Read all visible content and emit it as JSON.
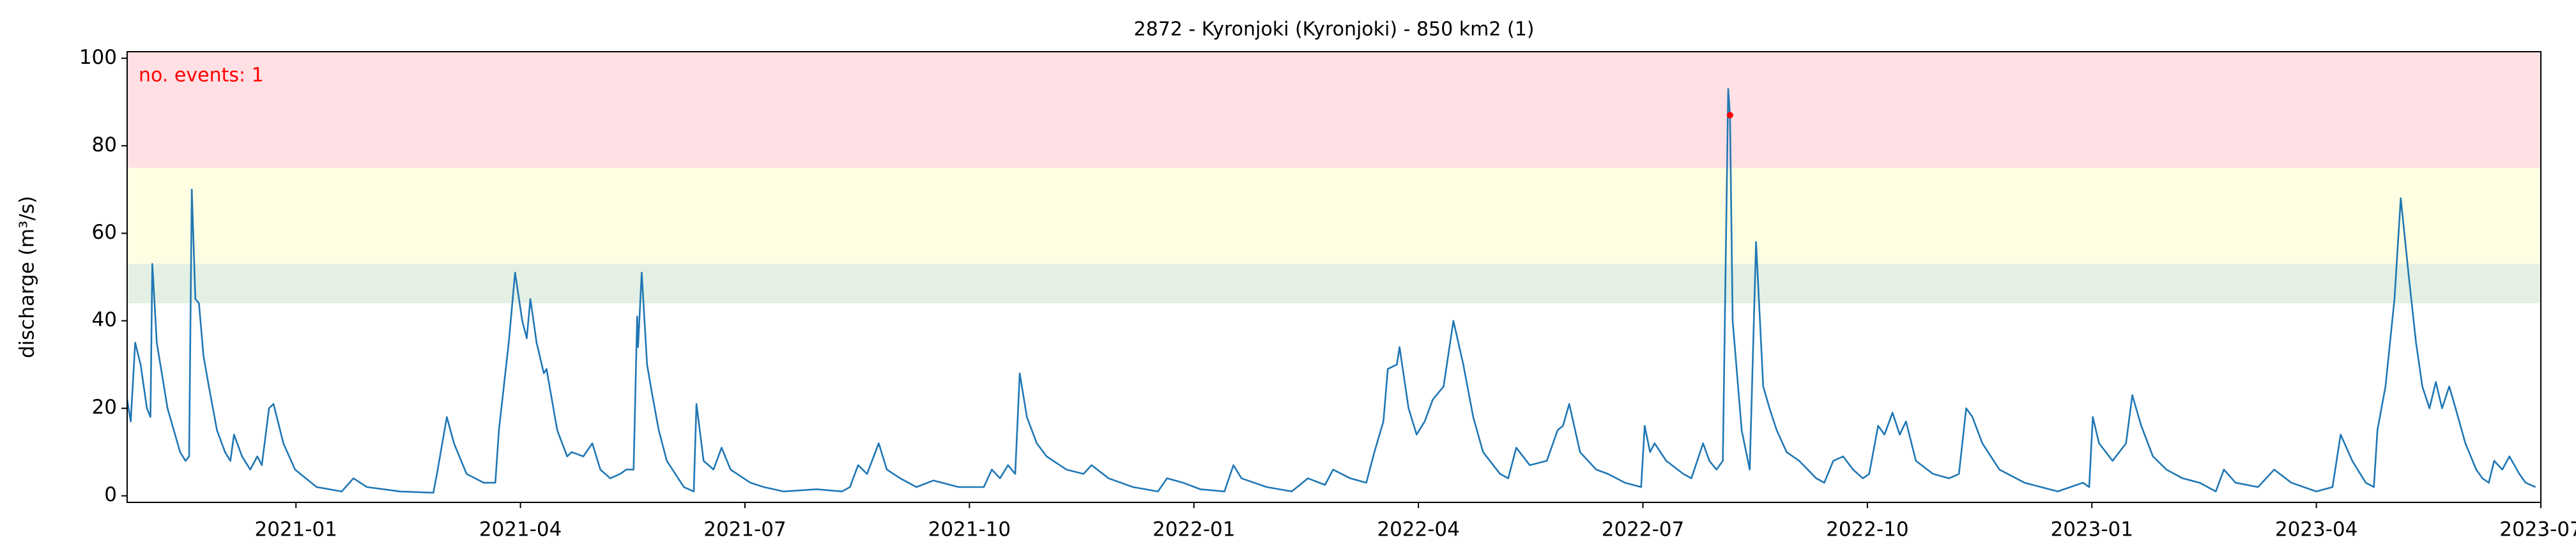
{
  "chart_data": {
    "type": "line",
    "title": "2872 - Kyronjoki (Kyronjoki) - 850 km2 (1)",
    "ylabel": "discharge (m³/s)",
    "annotation": "no. events: 1",
    "color": "#1f77b4",
    "xlim": [
      2020.812,
      2023.5
    ],
    "ylim": [
      -1.5,
      101.5
    ],
    "yticks": [
      0,
      20,
      40,
      60,
      80,
      100
    ],
    "xticks": [
      {
        "value": 2021.0,
        "label": "2021-01"
      },
      {
        "value": 2021.25,
        "label": "2021-04"
      },
      {
        "value": 2021.5,
        "label": "2021-07"
      },
      {
        "value": 2021.75,
        "label": "2021-10"
      },
      {
        "value": 2022.0,
        "label": "2022-01"
      },
      {
        "value": 2022.25,
        "label": "2022-04"
      },
      {
        "value": 2022.5,
        "label": "2022-07"
      },
      {
        "value": 2022.75,
        "label": "2022-10"
      },
      {
        "value": 2023.0,
        "label": "2023-01"
      },
      {
        "value": 2023.25,
        "label": "2023-04"
      },
      {
        "value": 2023.5,
        "label": "2023-07"
      }
    ],
    "thresholds": [
      44,
      53,
      75
    ],
    "threshold_colors": [
      "#e3f0e3",
      "#fefee3",
      "#ffe0e4"
    ],
    "x": [
      2020.812,
      2020.816,
      2020.821,
      2020.827,
      2020.834,
      2020.838,
      2020.84,
      2020.845,
      2020.857,
      2020.871,
      2020.877,
      2020.881,
      2020.884,
      2020.888,
      2020.892,
      2020.897,
      2020.903,
      2020.912,
      2020.921,
      2020.927,
      2020.931,
      2020.94,
      2020.949,
      2020.957,
      2020.962,
      2020.97,
      2020.975,
      2020.986,
      2020.999,
      2021.023,
      2021.051,
      2021.064,
      2021.079,
      2021.116,
      2021.153,
      2021.157,
      2021.168,
      2021.176,
      2021.19,
      2021.209,
      2021.222,
      2021.226,
      2021.237,
      2021.244,
      2021.252,
      2021.257,
      2021.261,
      2021.268,
      2021.276,
      2021.279,
      2021.291,
      2021.302,
      2021.307,
      2021.32,
      2021.33,
      2021.339,
      2021.35,
      2021.361,
      2021.368,
      2021.376,
      2021.38,
      2021.381,
      2021.385,
      2021.391,
      2021.396,
      2021.404,
      2021.413,
      2021.432,
      2021.443,
      2021.446,
      2021.454,
      2021.465,
      2021.474,
      2021.484,
      2021.506,
      2021.521,
      2021.543,
      2021.58,
      2021.608,
      2021.617,
      2021.626,
      2021.636,
      2021.649,
      2021.658,
      2021.673,
      2021.691,
      2021.71,
      2021.738,
      2021.766,
      2021.775,
      2021.784,
      2021.793,
      2021.801,
      2021.806,
      2021.814,
      2021.825,
      2021.836,
      2021.858,
      2021.877,
      2021.886,
      2021.905,
      2021.932,
      2021.96,
      2021.97,
      2021.988,
      2022.007,
      2022.034,
      2022.044,
      2022.053,
      2022.081,
      2022.109,
      2022.127,
      2022.146,
      2022.155,
      2022.174,
      2022.192,
      2022.201,
      2022.211,
      2022.216,
      2022.226,
      2022.229,
      2022.239,
      2022.248,
      2022.257,
      2022.266,
      2022.278,
      2022.289,
      2022.3,
      2022.311,
      2022.322,
      2022.341,
      2022.35,
      2022.359,
      2022.374,
      2022.393,
      2022.405,
      2022.411,
      2022.418,
      2022.43,
      2022.448,
      2022.461,
      2022.48,
      2022.498,
      2022.502,
      2022.508,
      2022.513,
      2022.526,
      2022.545,
      2022.554,
      2022.567,
      2022.574,
      2022.582,
      2022.589,
      2022.595,
      2022.597,
      2022.6,
      2022.61,
      2022.619,
      2022.626,
      2022.634,
      2022.641,
      2022.649,
      2022.66,
      2022.674,
      2022.693,
      2022.702,
      2022.712,
      2022.723,
      2022.734,
      2022.745,
      2022.752,
      2022.762,
      2022.769,
      2022.778,
      2022.786,
      2022.793,
      2022.804,
      2022.823,
      2022.841,
      2022.852,
      2022.86,
      2022.867,
      2022.878,
      2022.897,
      2022.925,
      2022.962,
      2022.99,
      2022.997,
      2023.001,
      2023.008,
      2023.023,
      2023.038,
      2023.045,
      2023.055,
      2023.068,
      2023.083,
      2023.101,
      2023.12,
      2023.138,
      2023.147,
      2023.16,
      2023.185,
      2023.203,
      2023.222,
      2023.25,
      2023.268,
      2023.277,
      2023.29,
      2023.305,
      2023.314,
      2023.318,
      2023.327,
      2023.337,
      2023.344,
      2023.353,
      2023.361,
      2023.368,
      2023.376,
      2023.383,
      2023.39,
      2023.398,
      2023.405,
      2023.416,
      2023.428,
      2023.435,
      2023.442,
      2023.448,
      2023.457,
      2023.465,
      2023.476,
      2023.483,
      2023.494
    ],
    "values": [
      22,
      17,
      35,
      30,
      20,
      18,
      53,
      35,
      20,
      10,
      8,
      9,
      70,
      45,
      44,
      32,
      25,
      15,
      10,
      8,
      14,
      9,
      6,
      9,
      7,
      20,
      21,
      12,
      6,
      2,
      1,
      4,
      2,
      1,
      0.7,
      5,
      18,
      12,
      5,
      3,
      3,
      15,
      35,
      51,
      40,
      36,
      45,
      35,
      28,
      29,
      15,
      9,
      10,
      9,
      12,
      6,
      4,
      5,
      6,
      6,
      41,
      34,
      51,
      30,
      24,
      15,
      8,
      2,
      1,
      21,
      8,
      6,
      11,
      6,
      3,
      2,
      1,
      1.5,
      1,
      2,
      7,
      5,
      12,
      6,
      4,
      2,
      3.5,
      2,
      2,
      6,
      4,
      7,
      5,
      28,
      18,
      12,
      9,
      6,
      5,
      7,
      4,
      2,
      1,
      4,
      3,
      1.5,
      1,
      7,
      4,
      2,
      1,
      4,
      2.5,
      6,
      4,
      3,
      10,
      17,
      29,
      30,
      34,
      20,
      14,
      17,
      22,
      25,
      40,
      30,
      18,
      10,
      5,
      4,
      11,
      7,
      8,
      15,
      16,
      21,
      10,
      6,
      5,
      3,
      2,
      16,
      10,
      12,
      8,
      5,
      4,
      12,
      8,
      6,
      8,
      93,
      87,
      40,
      15,
      6,
      58,
      25,
      20,
      15,
      10,
      8,
      4,
      3,
      8,
      9,
      6,
      4,
      5,
      16,
      14,
      19,
      14,
      17,
      8,
      5,
      4,
      5,
      20,
      18,
      12,
      6,
      3,
      1,
      3,
      2,
      18,
      12,
      8,
      12,
      23,
      16,
      9,
      6,
      4,
      3,
      1,
      6,
      3,
      2,
      6,
      3,
      1,
      2,
      14,
      8,
      3,
      2,
      15,
      25,
      45,
      68,
      50,
      35,
      25,
      20,
      26,
      20,
      25,
      20,
      12,
      6,
      4,
      3,
      8,
      6,
      9,
      5,
      3,
      2
    ],
    "events": {
      "color": "#ff0000",
      "x": [
        2022.597
      ],
      "values": [
        87
      ]
    }
  }
}
